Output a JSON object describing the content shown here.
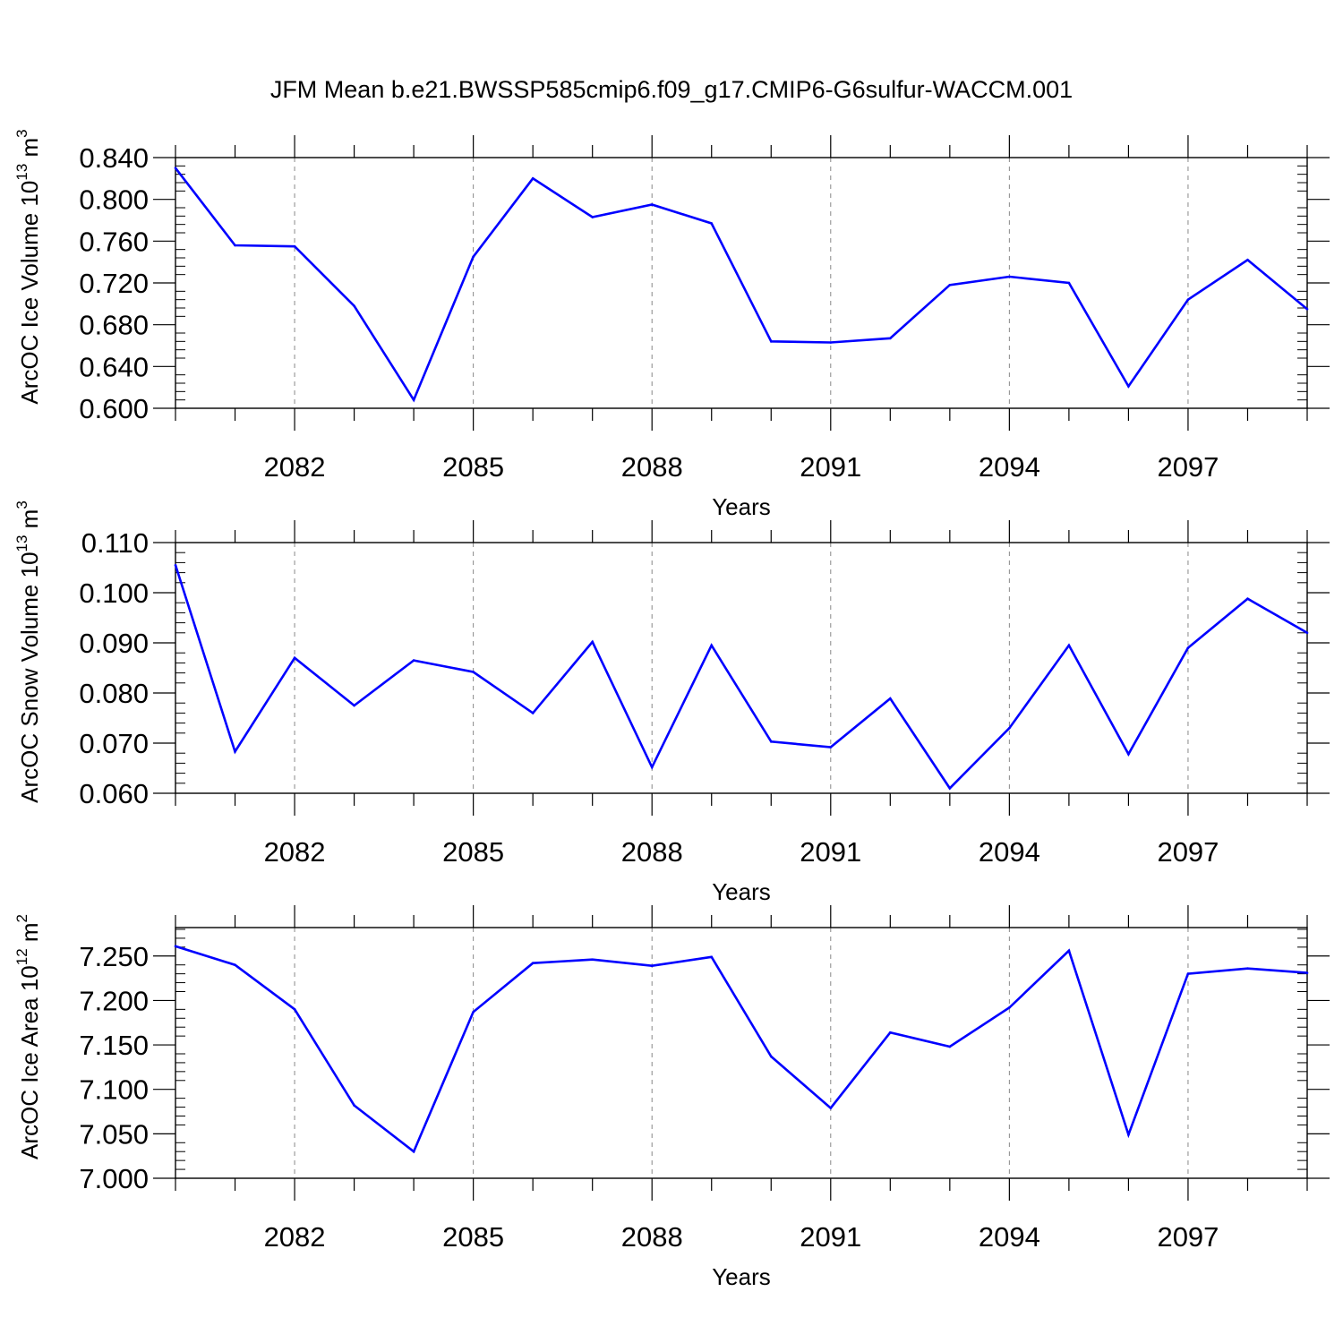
{
  "title": "JFM Mean b.e21.BWSSP585cmip6.f09_g17.CMIP6-G6sulfur-WACCM.001",
  "colors": {
    "line": "#0000ff",
    "axis": "#000000",
    "grid": "#888888"
  },
  "chart_data": [
    {
      "type": "line",
      "ylabel_main": "ArcOC Ice Volume 10",
      "ylabel_exp": "13",
      "ylabel_unit": " m",
      "ylabel_unit_exp": "3",
      "xlabel": "Years",
      "xlim": [
        2080,
        2099
      ],
      "ylim": [
        0.6,
        0.84
      ],
      "yticks": [
        0.6,
        0.64,
        0.68,
        0.72,
        0.76,
        0.8,
        0.84
      ],
      "ytick_labels": [
        "0.600",
        "0.640",
        "0.680",
        "0.720",
        "0.760",
        "0.800",
        "0.840"
      ],
      "xticks": [
        2082,
        2085,
        2088,
        2091,
        2094,
        2097
      ],
      "xtick_labels": [
        "2082",
        "2085",
        "2088",
        "2091",
        "2094",
        "2097"
      ],
      "grid": "vertical dashed at labeled years",
      "x": [
        2080,
        2081,
        2082,
        2083,
        2084,
        2085,
        2086,
        2087,
        2088,
        2089,
        2090,
        2091,
        2092,
        2093,
        2094,
        2095,
        2096,
        2097,
        2098,
        2099
      ],
      "values": [
        0.83,
        0.756,
        0.755,
        0.698,
        0.608,
        0.745,
        0.82,
        0.783,
        0.795,
        0.777,
        0.664,
        0.663,
        0.667,
        0.718,
        0.726,
        0.72,
        0.621,
        0.704,
        0.742,
        0.695
      ]
    },
    {
      "type": "line",
      "ylabel_main": "ArcOC Snow Volume 10",
      "ylabel_exp": "13",
      "ylabel_unit": " m",
      "ylabel_unit_exp": "3",
      "xlabel": "Years",
      "xlim": [
        2080,
        2099
      ],
      "ylim": [
        0.06,
        0.11
      ],
      "yticks": [
        0.06,
        0.07,
        0.08,
        0.09,
        0.1,
        0.11
      ],
      "ytick_labels": [
        "0.060",
        "0.070",
        "0.080",
        "0.090",
        "0.100",
        "0.110"
      ],
      "xticks": [
        2082,
        2085,
        2088,
        2091,
        2094,
        2097
      ],
      "xtick_labels": [
        "2082",
        "2085",
        "2088",
        "2091",
        "2094",
        "2097"
      ],
      "grid": "vertical dashed at labeled years",
      "x": [
        2080,
        2081,
        2082,
        2083,
        2084,
        2085,
        2086,
        2087,
        2088,
        2089,
        2090,
        2091,
        2092,
        2093,
        2094,
        2095,
        2096,
        2097,
        2098,
        2099
      ],
      "values": [
        0.1055,
        0.0683,
        0.087,
        0.0775,
        0.0865,
        0.0842,
        0.076,
        0.0902,
        0.0652,
        0.0895,
        0.0703,
        0.0692,
        0.0789,
        0.061,
        0.073,
        0.0895,
        0.0678,
        0.089,
        0.0988,
        0.092
      ]
    },
    {
      "type": "line",
      "ylabel_main": "ArcOC Ice Area 10",
      "ylabel_exp": "12",
      "ylabel_unit": " m",
      "ylabel_unit_exp": "2",
      "xlabel": "Years",
      "xlim": [
        2080,
        2099
      ],
      "ylim": [
        7.0,
        7.282
      ],
      "yticks": [
        7.0,
        7.05,
        7.1,
        7.15,
        7.2,
        7.25
      ],
      "ytick_labels": [
        "7.000",
        "7.050",
        "7.100",
        "7.150",
        "7.200",
        "7.250"
      ],
      "xticks": [
        2082,
        2085,
        2088,
        2091,
        2094,
        2097
      ],
      "xtick_labels": [
        "2082",
        "2085",
        "2088",
        "2091",
        "2094",
        "2097"
      ],
      "grid": "vertical dashed at labeled years",
      "x": [
        2080,
        2081,
        2082,
        2083,
        2084,
        2085,
        2086,
        2087,
        2088,
        2089,
        2090,
        2091,
        2092,
        2093,
        2094,
        2095,
        2096,
        2097,
        2098,
        2099
      ],
      "values": [
        7.261,
        7.24,
        7.19,
        7.082,
        7.03,
        7.187,
        7.242,
        7.246,
        7.239,
        7.249,
        7.137,
        7.079,
        7.164,
        7.148,
        7.192,
        7.256,
        7.049,
        7.23,
        7.236,
        7.231
      ]
    }
  ]
}
